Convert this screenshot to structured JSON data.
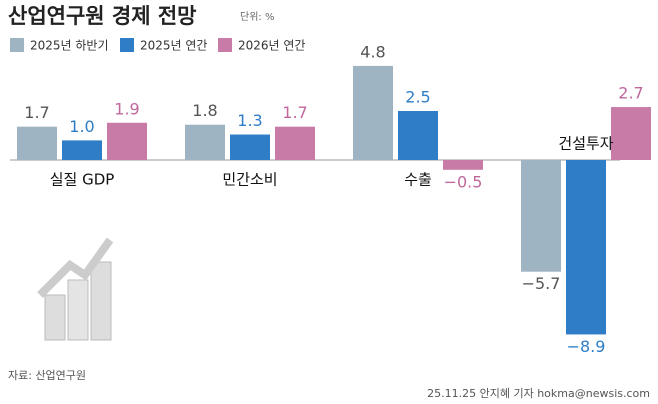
{
  "chart_data": {
    "type": "bar",
    "title": "산업연구원 경제 전망",
    "unit": "단위: %",
    "categories": [
      "실질 GDP",
      "민간소비",
      "수출",
      "건설투자"
    ],
    "series": [
      {
        "name": "2025년 하반기",
        "color": "#9fb4c2",
        "label_color": "#555555",
        "values": [
          1.7,
          1.8,
          4.8,
          -5.7
        ],
        "value_labels": [
          "1.7",
          "1.8",
          "4.8",
          "−5.7"
        ]
      },
      {
        "name": "2025년 연간",
        "color": "#2e7dc6",
        "label_color": "#2e7dc6",
        "values": [
          1.0,
          1.3,
          2.5,
          -8.9
        ],
        "value_labels": [
          "1.0",
          "1.3",
          "2.5",
          "−8.9"
        ]
      },
      {
        "name": "2026년 연간",
        "color": "#c97ba8",
        "label_color": "#c0679c",
        "values": [
          1.9,
          1.7,
          -0.5,
          2.7
        ],
        "value_labels": [
          "1.9",
          "1.7",
          "−0.5",
          "2.7"
        ]
      }
    ],
    "source": "자료: 산업연구원",
    "credit": "25.11.25 안지혜 기자 hokma@newsis.com"
  }
}
